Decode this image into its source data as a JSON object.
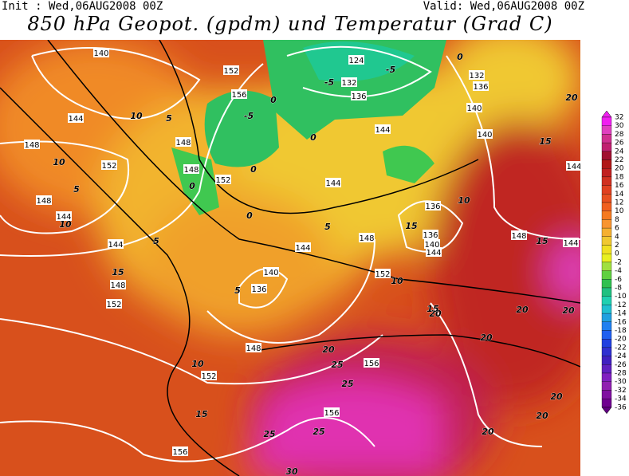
{
  "header": {
    "init": "Init : Wed,06AUG2008 00Z",
    "valid": "Valid: Wed,06AUG2008 00Z",
    "title": "850 hPa Geopot. (gpdm) und Temperatur (Grad C)"
  },
  "colorbar": {
    "levels": [
      32,
      30,
      28,
      26,
      24,
      22,
      20,
      18,
      16,
      14,
      12,
      10,
      8,
      6,
      4,
      2,
      0,
      -2,
      -4,
      -6,
      -8,
      -10,
      -12,
      -14,
      -16,
      -18,
      -20,
      -22,
      -24,
      -26,
      -28,
      -30,
      -32,
      -34,
      -36
    ],
    "colors": [
      "#f020f0",
      "#e040c0",
      "#d03090",
      "#c02070",
      "#a01030",
      "#b01818",
      "#c02020",
      "#d03020",
      "#e04020",
      "#e85020",
      "#f06020",
      "#f57a20",
      "#f89530",
      "#f5b030",
      "#f0c830",
      "#f0e020",
      "#e8f020",
      "#a0e040",
      "#60d040",
      "#30c050",
      "#20c080",
      "#20d0b0",
      "#20c0d0",
      "#20a0e0",
      "#2080f0",
      "#2060f0",
      "#2040e0",
      "#3030d0",
      "#4020c0",
      "#6020c0",
      "#8020c0",
      "#9020b0",
      "#8010a0",
      "#700090",
      "#600080"
    ]
  },
  "geopotential_labels": [
    140,
    144,
    148,
    152,
    148,
    144,
    144,
    148,
    152,
    152,
    156,
    148,
    148,
    152,
    124,
    132,
    136,
    132,
    136,
    140,
    144,
    140,
    144,
    136,
    136,
    140,
    144,
    148,
    144,
    140,
    136,
    152,
    148,
    144,
    148,
    152,
    156,
    156,
    156,
    144
  ],
  "temperature_labels": [
    0,
    -5,
    -5,
    -5,
    0,
    0,
    0,
    0,
    0,
    5,
    5,
    10,
    10,
    10,
    5,
    15,
    5,
    10,
    15,
    20,
    25,
    25,
    20,
    15,
    10,
    10,
    15,
    20,
    15,
    20,
    20,
    20,
    20,
    20,
    20,
    25,
    25,
    30,
    15,
    5
  ]
}
